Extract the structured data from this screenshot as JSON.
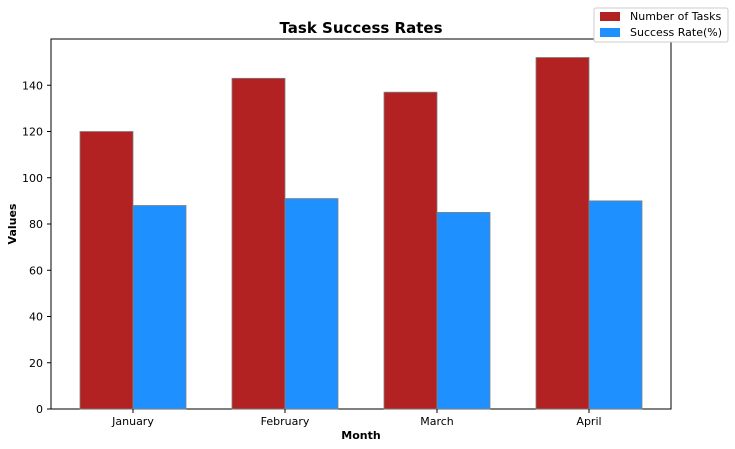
{
  "chart_data": {
    "type": "bar",
    "title": "Task Success Rates",
    "xlabel": "Month",
    "ylabel": "Values",
    "categories": [
      "January",
      "February",
      "March",
      "April"
    ],
    "series": [
      {
        "name": "Number of Tasks",
        "values": [
          120,
          143,
          137,
          152
        ],
        "color": "#b22222"
      },
      {
        "name": "Success Rate(%)",
        "values": [
          88,
          91,
          85,
          90
        ],
        "color": "#1e90ff"
      }
    ],
    "ylim": [
      0,
      160
    ],
    "yticks": [
      0,
      20,
      40,
      60,
      80,
      100,
      120,
      140
    ],
    "grid": false,
    "legend_position": "top-right",
    "bar_edge_color": "#808080"
  }
}
